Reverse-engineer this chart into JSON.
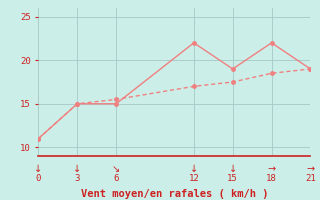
{
  "line1_x": [
    0,
    3,
    6,
    12,
    15,
    18,
    21
  ],
  "line1_y": [
    11,
    15,
    15,
    22,
    19,
    22,
    19
  ],
  "line2_x": [
    0,
    3,
    6,
    12,
    15,
    18,
    21
  ],
  "line2_y": [
    11,
    15,
    15.5,
    17,
    17.5,
    18.5,
    19
  ],
  "line_color": "#f08080",
  "bg_color": "#cceee8",
  "grid_color": "#aacccc",
  "xlabel": "Vent moyen/en rafales ( km/h )",
  "xlabel_color": "#cc2222",
  "tick_color": "#cc2222",
  "axis_color": "#cc2222",
  "xlim": [
    0,
    21
  ],
  "ylim": [
    9,
    26
  ],
  "yticks": [
    10,
    15,
    20,
    25
  ],
  "xticks": [
    0,
    3,
    6,
    12,
    15,
    18,
    21
  ],
  "xtick_labels": [
    "↓",
    "↓",
    "↘",
    "↓",
    "↓",
    "→",
    "→"
  ],
  "xnum_labels": [
    "0",
    "3",
    "6",
    "12",
    "15",
    "18",
    "21"
  ],
  "marker_size": 2.5,
  "linewidth": 1.0,
  "fontsize_tick": 6.5,
  "fontsize_xlabel": 7.5
}
